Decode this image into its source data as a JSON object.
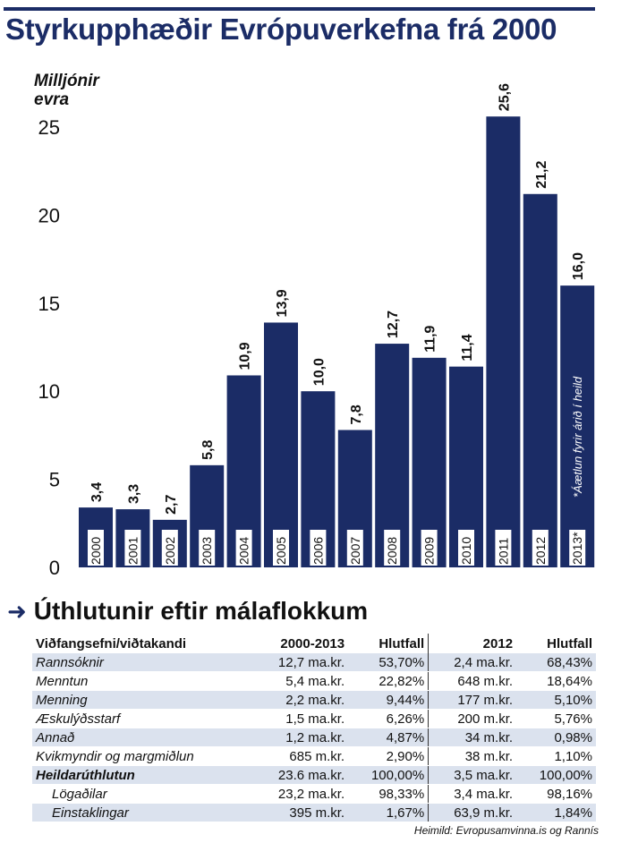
{
  "title": "Styrkupphæðir Evrópuverkefna frá 2000",
  "chart_data": {
    "type": "bar",
    "ylabel": "Milljónir evra",
    "ylim": [
      0,
      25
    ],
    "yticks": [
      "0",
      "5",
      "10",
      "15",
      "20",
      "25"
    ],
    "categories": [
      "2000",
      "2001",
      "2002",
      "2003",
      "2004",
      "2005",
      "2006",
      "2007",
      "2008",
      "2009",
      "2010",
      "2011",
      "2012",
      "2013*"
    ],
    "values": [
      3.4,
      3.3,
      2.7,
      5.8,
      10.9,
      13.9,
      10.0,
      7.8,
      12.7,
      11.9,
      11.4,
      25.6,
      21.2,
      16.0
    ],
    "value_labels": [
      "3,4",
      "3,3",
      "2,7",
      "5,8",
      "10,9",
      "13,9",
      "10,0",
      "7,8",
      "12,7",
      "11,9",
      "11,4",
      "25,6",
      "21,2",
      "16,0"
    ],
    "bar_color": "#1b2c66",
    "annotation": "*Áætlun fyrir árið í heild",
    "grid": false
  },
  "section_heading": "Úthlutunir eftir málaflokkum",
  "table": {
    "headers": [
      "Viðfangsefni/viðtakandi",
      "2000-2013",
      "Hlutfall",
      "2012",
      "Hlutfall"
    ],
    "rows": [
      {
        "label": "Rannsóknir",
        "v1": "12,7 ma.kr.",
        "p1": "53,70%",
        "v2": "2,4 ma.kr.",
        "p2": "68,43%"
      },
      {
        "label": "Menntun",
        "v1": "5,4 ma.kr.",
        "p1": "22,82%",
        "v2": "648 m.kr.",
        "p2": "18,64%"
      },
      {
        "label": "Menning",
        "v1": "2,2 ma.kr.",
        "p1": "9,44%",
        "v2": "177 m.kr.",
        "p2": "5,10%"
      },
      {
        "label": "Æskulýðsstarf",
        "v1": "1,5 ma.kr.",
        "p1": "6,26%",
        "v2": "200 m.kr.",
        "p2": "5,76%"
      },
      {
        "label": "Annað",
        "v1": "1,2 ma.kr.",
        "p1": "4,87%",
        "v2": "34 m.kr.",
        "p2": "0,98%"
      },
      {
        "label": "Kvikmyndir og margmiðlun",
        "v1": "685 m.kr.",
        "p1": "2,90%",
        "v2": "38 m.kr.",
        "p2": "1,10%"
      },
      {
        "label": "Heildarúthlutun",
        "v1": "23.6 ma.kr.",
        "p1": "100,00%",
        "v2": "3,5 ma.kr.",
        "p2": "100,00%"
      },
      {
        "label": "Lögaðilar",
        "v1": "23,2 ma.kr.",
        "p1": "98,33%",
        "v2": "3,4 ma.kr.",
        "p2": "98,16%"
      },
      {
        "label": "Einstaklingar",
        "v1": "395 m.kr.",
        "p1": "1,67%",
        "v2": "63,9 m.kr.",
        "p2": "1,84%"
      }
    ]
  },
  "source": "Heimild: Evropusamvinna.is og Rannís"
}
